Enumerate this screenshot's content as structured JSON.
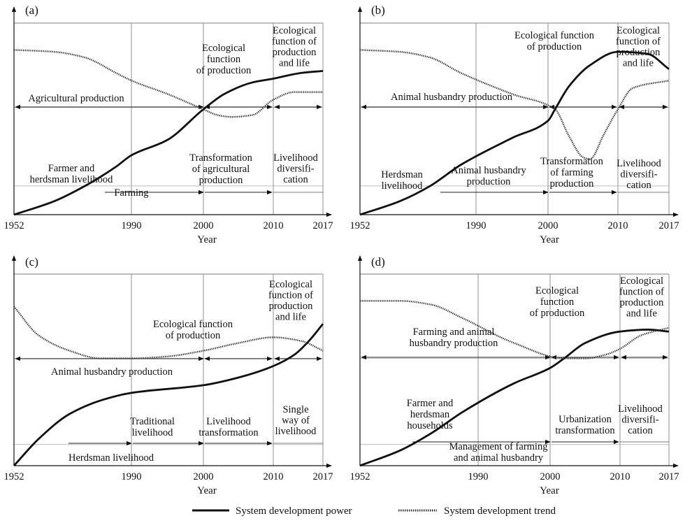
{
  "legend": {
    "power_label": "System development power",
    "trend_label": "System development trend"
  },
  "chart_data": [
    {
      "type": "line",
      "panel_label": "(a)",
      "xlabel": "Year",
      "x_ticks": [
        "1952",
        "1990",
        "2000",
        "2010",
        "2017"
      ],
      "xlim": [
        1952,
        2017
      ],
      "ylim": [
        0,
        1
      ],
      "y_gridlines": [
        0.15,
        0.56
      ],
      "annotations": [
        {
          "id": "a-eco",
          "lines": [
            "Ecological",
            "function",
            "of production"
          ]
        },
        {
          "id": "a-ecolife",
          "lines": [
            "Ecological",
            "function of",
            "production",
            "and life"
          ]
        },
        {
          "id": "a-agri",
          "lines": [
            "Agricultural production"
          ]
        },
        {
          "id": "a-farmer",
          "lines": [
            "Farmer and",
            "herdsman livelihood"
          ]
        },
        {
          "id": "a-farming",
          "lines": [
            "Farming"
          ]
        },
        {
          "id": "a-trans",
          "lines": [
            "Transformation",
            "of agricultural",
            "production"
          ]
        },
        {
          "id": "a-liveli",
          "lines": [
            "Livelihood",
            "diversifi-",
            "cation"
          ]
        }
      ],
      "series": [
        {
          "name": "System development power",
          "style": "solid",
          "points": [
            [
              1952,
              0
            ],
            [
              1965,
              0.07
            ],
            [
              1975,
              0.15
            ],
            [
              1985,
              0.25
            ],
            [
              1990,
              0.31
            ],
            [
              1995,
              0.39
            ],
            [
              2000,
              0.55
            ],
            [
              2003,
              0.63
            ],
            [
              2007,
              0.69
            ],
            [
              2010,
              0.71
            ],
            [
              2014,
              0.74
            ],
            [
              2017,
              0.75
            ]
          ]
        },
        {
          "name": "System development trend",
          "style": "dotted",
          "points": [
            [
              1952,
              0.86
            ],
            [
              1965,
              0.85
            ],
            [
              1975,
              0.82
            ],
            [
              1985,
              0.74
            ],
            [
              1990,
              0.7
            ],
            [
              1995,
              0.63
            ],
            [
              2000,
              0.55
            ],
            [
              2002,
              0.52
            ],
            [
              2004,
              0.51
            ],
            [
              2007,
              0.52
            ],
            [
              2010,
              0.6
            ],
            [
              2013,
              0.64
            ],
            [
              2017,
              0.64
            ]
          ]
        }
      ]
    },
    {
      "type": "line",
      "panel_label": "(b)",
      "xlabel": "Year",
      "x_ticks": [
        "1952",
        "1990",
        "2000",
        "2010",
        "2017"
      ],
      "xlim": [
        1952,
        2017
      ],
      "ylim": [
        0,
        1
      ],
      "y_gridlines": [
        0.15,
        0.56
      ],
      "annotations": [
        {
          "id": "b-eco",
          "lines": [
            "Ecological function",
            "of production"
          ]
        },
        {
          "id": "b-ecolife",
          "lines": [
            "Ecological",
            "function of",
            "production",
            "and life"
          ]
        },
        {
          "id": "b-animal",
          "lines": [
            "Animal husbandry production"
          ]
        },
        {
          "id": "b-herds",
          "lines": [
            "Herdsman",
            "livelihood"
          ]
        },
        {
          "id": "b-animal2",
          "lines": [
            "Animal husbandry",
            "production"
          ]
        },
        {
          "id": "b-trans",
          "lines": [
            "Transformation",
            "of  farming",
            "production"
          ]
        },
        {
          "id": "b-liveli",
          "lines": [
            "Livelihood",
            "diversifi-",
            "cation"
          ]
        }
      ],
      "series": [
        {
          "name": "System development power",
          "style": "solid",
          "points": [
            [
              1952,
              0
            ],
            [
              1965,
              0.07
            ],
            [
              1975,
              0.15
            ],
            [
              1985,
              0.26
            ],
            [
              1995,
              0.4
            ],
            [
              2000,
              0.49
            ],
            [
              2001,
              0.55
            ],
            [
              2003,
              0.67
            ],
            [
              2006,
              0.78
            ],
            [
              2010,
              0.85
            ],
            [
              2014,
              0.84
            ],
            [
              2017,
              0.76
            ]
          ]
        },
        {
          "name": "System development trend",
          "style": "dotted",
          "points": [
            [
              1952,
              0.86
            ],
            [
              1965,
              0.85
            ],
            [
              1975,
              0.82
            ],
            [
              1985,
              0.74
            ],
            [
              1995,
              0.63
            ],
            [
              2001,
              0.55
            ],
            [
              2003,
              0.41
            ],
            [
              2005,
              0.3
            ],
            [
              2006,
              0.29
            ],
            [
              2008,
              0.42
            ],
            [
              2010,
              0.55
            ],
            [
              2012,
              0.66
            ],
            [
              2017,
              0.7
            ]
          ]
        }
      ]
    },
    {
      "type": "line",
      "panel_label": "(c)",
      "xlabel": "Year",
      "x_ticks": [
        "1952",
        "1990",
        "2000",
        "2010",
        "2017"
      ],
      "xlim": [
        1952,
        2017
      ],
      "ylim": [
        0,
        1
      ],
      "y_gridlines": [
        0.11,
        0.56
      ],
      "annotations": [
        {
          "id": "c-eco",
          "lines": [
            "Ecological function",
            "of production"
          ]
        },
        {
          "id": "c-ecolife",
          "lines": [
            "Ecological",
            "function of",
            "production",
            "and life"
          ]
        },
        {
          "id": "c-animal",
          "lines": [
            "Animal husbandry production"
          ]
        },
        {
          "id": "c-herds",
          "lines": [
            "Herdsman livelihood"
          ]
        },
        {
          "id": "c-trad",
          "lines": [
            "Traditional",
            "livelihood"
          ]
        },
        {
          "id": "c-ltrans",
          "lines": [
            "Livelihood",
            "transformation"
          ]
        },
        {
          "id": "c-single",
          "lines": [
            "Single",
            "way of",
            "livelihood"
          ]
        }
      ],
      "series": [
        {
          "name": "System development power",
          "style": "solid",
          "points": [
            [
              1952,
              0
            ],
            [
              1960,
              0.14
            ],
            [
              1970,
              0.27
            ],
            [
              1980,
              0.34
            ],
            [
              1990,
              0.38
            ],
            [
              2000,
              0.42
            ],
            [
              2005,
              0.46
            ],
            [
              2010,
              0.52
            ],
            [
              2013,
              0.58
            ],
            [
              2015,
              0.65
            ],
            [
              2017,
              0.74
            ]
          ]
        },
        {
          "name": "System development trend",
          "style": "dotted",
          "points": [
            [
              1952,
              0.83
            ],
            [
              1960,
              0.68
            ],
            [
              1970,
              0.6
            ],
            [
              1980,
              0.56
            ],
            [
              1990,
              0.56
            ],
            [
              1995,
              0.57
            ],
            [
              2000,
              0.6
            ],
            [
              2005,
              0.64
            ],
            [
              2010,
              0.67
            ],
            [
              2014,
              0.65
            ],
            [
              2017,
              0.6
            ]
          ]
        }
      ]
    },
    {
      "type": "line",
      "panel_label": "(d)",
      "xlabel": "Year",
      "x_ticks": [
        "1952",
        "1990",
        "2000",
        "2010",
        "2017"
      ],
      "xlim": [
        1952,
        2017
      ],
      "ylim": [
        0,
        1
      ],
      "y_gridlines": [
        0.11,
        0.56
      ],
      "annotations": [
        {
          "id": "d-eco",
          "lines": [
            "Ecological",
            "function",
            "of production"
          ]
        },
        {
          "id": "d-ecolife",
          "lines": [
            "Ecological",
            "function of",
            "production",
            "and life"
          ]
        },
        {
          "id": "d-farmanimal",
          "lines": [
            "Farming and animal",
            "husbandry production"
          ]
        },
        {
          "id": "d-farmer",
          "lines": [
            "Farmer and",
            "herdsman",
            "households"
          ]
        },
        {
          "id": "d-urban",
          "lines": [
            "Urbanization",
            "transformation"
          ]
        },
        {
          "id": "d-manage",
          "lines": [
            "Management of farming",
            "and animal husbandry"
          ]
        },
        {
          "id": "d-liveli",
          "lines": [
            "Livelihood",
            "diversifi-",
            "cation"
          ]
        }
      ],
      "series": [
        {
          "name": "System development power",
          "style": "solid",
          "points": [
            [
              1952,
              0
            ],
            [
              1965,
              0.08
            ],
            [
              1975,
              0.17
            ],
            [
              1985,
              0.28
            ],
            [
              1995,
              0.43
            ],
            [
              2000,
              0.51
            ],
            [
              2002,
              0.56
            ],
            [
              2005,
              0.64
            ],
            [
              2010,
              0.7
            ],
            [
              2014,
              0.71
            ],
            [
              2017,
              0.7
            ]
          ]
        },
        {
          "name": "System development trend",
          "style": "dotted",
          "points": [
            [
              1952,
              0.86
            ],
            [
              1965,
              0.86
            ],
            [
              1975,
              0.84
            ],
            [
              1985,
              0.77
            ],
            [
              1995,
              0.64
            ],
            [
              2002,
              0.56
            ],
            [
              2005,
              0.56
            ],
            [
              2008,
              0.58
            ],
            [
              2010,
              0.61
            ],
            [
              2013,
              0.68
            ],
            [
              2017,
              0.72
            ]
          ]
        }
      ]
    }
  ]
}
